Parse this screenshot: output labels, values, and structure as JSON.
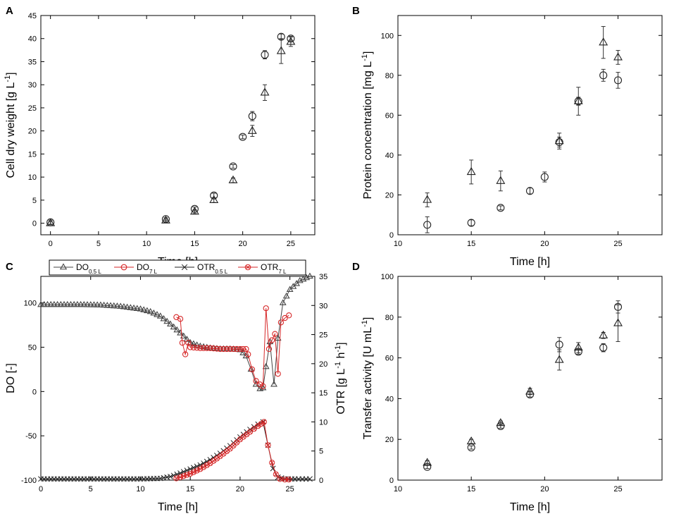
{
  "figure": {
    "panels": [
      "A",
      "B",
      "C",
      "D"
    ]
  },
  "chart_data": [
    {
      "panel": "A",
      "type": "scatter",
      "title": "",
      "xlabel": "Time [h]",
      "ylabel": "Cell dry weight [g L-1]",
      "xlim": [
        -1,
        27.5
      ],
      "ylim": [
        -2.5,
        45
      ],
      "xticks": [
        0,
        5,
        10,
        15,
        20,
        25
      ],
      "yticks": [
        0,
        5,
        10,
        15,
        20,
        25,
        30,
        35,
        40,
        45
      ],
      "series": [
        {
          "name": "7 L",
          "marker": "circle",
          "points": [
            {
              "x": 0,
              "y": 0.2,
              "err": 0.4
            },
            {
              "x": 12,
              "y": 0.9,
              "err": 0.3
            },
            {
              "x": 15,
              "y": 3.1,
              "err": 0.4
            },
            {
              "x": 17,
              "y": 6.0,
              "err": 0.5
            },
            {
              "x": 19,
              "y": 12.3,
              "err": 0.4
            },
            {
              "x": 20,
              "y": 18.7,
              "err": 0.4
            },
            {
              "x": 21,
              "y": 23.2,
              "err": 1.0
            },
            {
              "x": 22.3,
              "y": 36.5,
              "err": 0.9
            },
            {
              "x": 24,
              "y": 40.4,
              "err": 0.6
            },
            {
              "x": 25,
              "y": 40.0,
              "err": 0.5
            }
          ]
        },
        {
          "name": "0.5 L",
          "marker": "triangle",
          "points": [
            {
              "x": 0,
              "y": 0.0,
              "err": 0.3
            },
            {
              "x": 12,
              "y": 0.6,
              "err": 0.3
            },
            {
              "x": 15,
              "y": 2.5,
              "err": 0.4
            },
            {
              "x": 17,
              "y": 5.0,
              "err": 0.5
            },
            {
              "x": 19,
              "y": 9.3,
              "err": 0.5
            },
            {
              "x": 21,
              "y": 20.0,
              "err": 1.2
            },
            {
              "x": 22.3,
              "y": 28.3,
              "err": 1.7
            },
            {
              "x": 24,
              "y": 37.3,
              "err": 2.7
            },
            {
              "x": 25,
              "y": 39.3,
              "err": 1.0
            }
          ]
        }
      ]
    },
    {
      "panel": "B",
      "type": "scatter",
      "title": "",
      "xlabel": "Time [h]",
      "ylabel": "Protein concentration [mg L-1]",
      "xlim": [
        10,
        28
      ],
      "ylim": [
        0,
        110
      ],
      "xticks": [
        10,
        15,
        20,
        25
      ],
      "yticks": [
        0,
        20,
        40,
        60,
        80,
        100
      ],
      "series": [
        {
          "name": "7 L",
          "marker": "circle",
          "points": [
            {
              "x": 12,
              "y": 5,
              "err": 4
            },
            {
              "x": 15,
              "y": 6,
              "err": 1.5
            },
            {
              "x": 17,
              "y": 13.5,
              "err": 1
            },
            {
              "x": 19,
              "y": 22,
              "err": 1.5
            },
            {
              "x": 20,
              "y": 29,
              "err": 2.5
            },
            {
              "x": 21,
              "y": 46.5,
              "err": 2.5
            },
            {
              "x": 22.3,
              "y": 67,
              "err": 2
            },
            {
              "x": 24,
              "y": 80,
              "err": 3
            },
            {
              "x": 25,
              "y": 77.5,
              "err": 4
            }
          ]
        },
        {
          "name": "0.5 L",
          "marker": "triangle",
          "points": [
            {
              "x": 12,
              "y": 17.5,
              "err": 3.5
            },
            {
              "x": 15,
              "y": 31.5,
              "err": 6
            },
            {
              "x": 17,
              "y": 27,
              "err": 5
            },
            {
              "x": 21,
              "y": 47,
              "err": 4
            },
            {
              "x": 22.3,
              "y": 67,
              "err": 7
            },
            {
              "x": 24,
              "y": 96.5,
              "err": 8
            },
            {
              "x": 25,
              "y": 89,
              "err": 3.5
            }
          ]
        }
      ]
    },
    {
      "panel": "C",
      "type": "line",
      "title": "",
      "xlabel": "Time [h]",
      "ylabel": "DO [-]",
      "y2label": "OTR [g L-1 h-1]",
      "xlim": [
        0,
        27.5
      ],
      "ylim": [
        -100,
        130
      ],
      "y2lim": [
        0,
        35
      ],
      "xticks": [
        0,
        5,
        10,
        15,
        20,
        25
      ],
      "yticks": [
        -100,
        -50,
        0,
        50,
        100
      ],
      "y2ticks": [
        0,
        5,
        10,
        15,
        20,
        25,
        30,
        35
      ],
      "legend_position": "top",
      "series": [
        {
          "name": "DO",
          "sub": "0.5 L",
          "axis": "left",
          "marker": "triangle",
          "color": "#444444",
          "segments": [
            [
              [
                0,
                98
              ],
              [
                2,
                98
              ],
              [
                4,
                98
              ],
              [
                6,
                97.5
              ],
              [
                8,
                96
              ],
              [
                10,
                93
              ],
              [
                11,
                90
              ],
              [
                12,
                85
              ],
              [
                13,
                76
              ],
              [
                14,
                66
              ],
              [
                15,
                55
              ],
              [
                16,
                51
              ],
              [
                17,
                49
              ],
              [
                18,
                48
              ],
              [
                19,
                48
              ],
              [
                20,
                47
              ],
              [
                20.6,
                40
              ],
              [
                21.1,
                25
              ],
              [
                21.6,
                8
              ],
              [
                22,
                3
              ],
              [
                22.3,
                4
              ],
              [
                22.6,
                28
              ],
              [
                23,
                56
              ],
              [
                23.4,
                8
              ],
              [
                23.8,
                60
              ],
              [
                24.3,
                100
              ],
              [
                25,
                115
              ],
              [
                26,
                125
              ],
              [
                27,
                130
              ]
            ]
          ]
        },
        {
          "name": "DO",
          "sub": "7 L",
          "axis": "left",
          "marker": "circle",
          "color": "#d62728",
          "segments": [
            [
              [
                13.6,
                84
              ],
              [
                14,
                82
              ],
              [
                14.2,
                55
              ],
              [
                14.5,
                42
              ],
              [
                14.8,
                55
              ],
              [
                15,
                50
              ],
              [
                16,
                49
              ],
              [
                17,
                49
              ],
              [
                18,
                48
              ],
              [
                19,
                48
              ],
              [
                20,
                48
              ],
              [
                20.6,
                48
              ],
              [
                20.8,
                42
              ],
              [
                21.2,
                25
              ],
              [
                21.6,
                12
              ],
              [
                22,
                8
              ],
              [
                22.3,
                6
              ],
              [
                22.6,
                94
              ],
              [
                22.9,
                48
              ],
              [
                23.2,
                58
              ],
              [
                23.5,
                65
              ],
              [
                23.8,
                20
              ],
              [
                24.1,
                78
              ],
              [
                24.5,
                83
              ],
              [
                24.9,
                86
              ]
            ]
          ]
        },
        {
          "name": "OTR",
          "sub": "0.5 L",
          "axis": "right",
          "marker": "x",
          "color": "#222222",
          "segments": [
            [
              [
                0,
                0.2
              ],
              [
                2,
                0.2
              ],
              [
                4,
                0.2
              ],
              [
                6,
                0.2
              ],
              [
                8,
                0.2
              ],
              [
                10,
                0.2
              ],
              [
                12,
                0.3
              ],
              [
                13,
                0.6
              ],
              [
                14,
                1.2
              ],
              [
                15,
                1.9
              ],
              [
                16,
                2.6
              ],
              [
                17,
                3.5
              ],
              [
                18,
                4.6
              ],
              [
                19,
                5.9
              ],
              [
                20,
                7.4
              ],
              [
                21,
                8.7
              ],
              [
                21.8,
                9.6
              ],
              [
                22.3,
                10
              ],
              [
                22.8,
                6
              ],
              [
                23.3,
                2
              ],
              [
                23.8,
                0.5
              ],
              [
                24.5,
                0.2
              ],
              [
                25.5,
                0.2
              ],
              [
                27,
                0.2
              ]
            ]
          ]
        },
        {
          "name": "OTR",
          "sub": "7 L",
          "axis": "right",
          "marker": "x-circle",
          "color": "#d62728",
          "segments": [
            [
              [
                13.6,
                0.3
              ],
              [
                14,
                0.5
              ],
              [
                15,
                1.1
              ],
              [
                16,
                1.9
              ],
              [
                17,
                2.9
              ],
              [
                18,
                4.1
              ],
              [
                19,
                5.4
              ],
              [
                20,
                7.0
              ],
              [
                21,
                8.3
              ],
              [
                21.8,
                9.3
              ],
              [
                22.4,
                10
              ],
              [
                22.8,
                6
              ],
              [
                23.2,
                3
              ],
              [
                23.6,
                1.0
              ],
              [
                24,
                0.2
              ],
              [
                24.5,
                0.1
              ],
              [
                24.9,
                0.1
              ]
            ]
          ]
        }
      ]
    },
    {
      "panel": "D",
      "type": "scatter",
      "title": "",
      "xlabel": "Time [h]",
      "ylabel": "Transfer activity [U mL-1]",
      "xlim": [
        10,
        28
      ],
      "ylim": [
        0,
        100
      ],
      "xticks": [
        10,
        15,
        20,
        25
      ],
      "yticks": [
        0,
        20,
        40,
        60,
        80,
        100
      ],
      "series": [
        {
          "name": "7 L",
          "marker": "circle",
          "points": [
            {
              "x": 12,
              "y": 6.5,
              "err": 0.8
            },
            {
              "x": 15,
              "y": 16,
              "err": 0.8
            },
            {
              "x": 17,
              "y": 26.5,
              "err": 1
            },
            {
              "x": 19,
              "y": 42,
              "err": 1.2
            },
            {
              "x": 21,
              "y": 66.5,
              "err": 3.5
            },
            {
              "x": 22.3,
              "y": 63,
              "err": 1.2
            },
            {
              "x": 24,
              "y": 65,
              "err": 2
            },
            {
              "x": 25,
              "y": 85,
              "err": 3
            }
          ]
        },
        {
          "name": "0.5 L",
          "marker": "triangle",
          "points": [
            {
              "x": 12,
              "y": 8.5,
              "err": 1
            },
            {
              "x": 15,
              "y": 19,
              "err": 1
            },
            {
              "x": 17,
              "y": 28,
              "err": 1
            },
            {
              "x": 19,
              "y": 43.5,
              "err": 1.5
            },
            {
              "x": 21,
              "y": 59,
              "err": 5
            },
            {
              "x": 22.3,
              "y": 65,
              "err": 2.5
            },
            {
              "x": 24,
              "y": 71,
              "err": 1.5
            },
            {
              "x": 25,
              "y": 77,
              "err": 9
            }
          ]
        }
      ]
    }
  ]
}
